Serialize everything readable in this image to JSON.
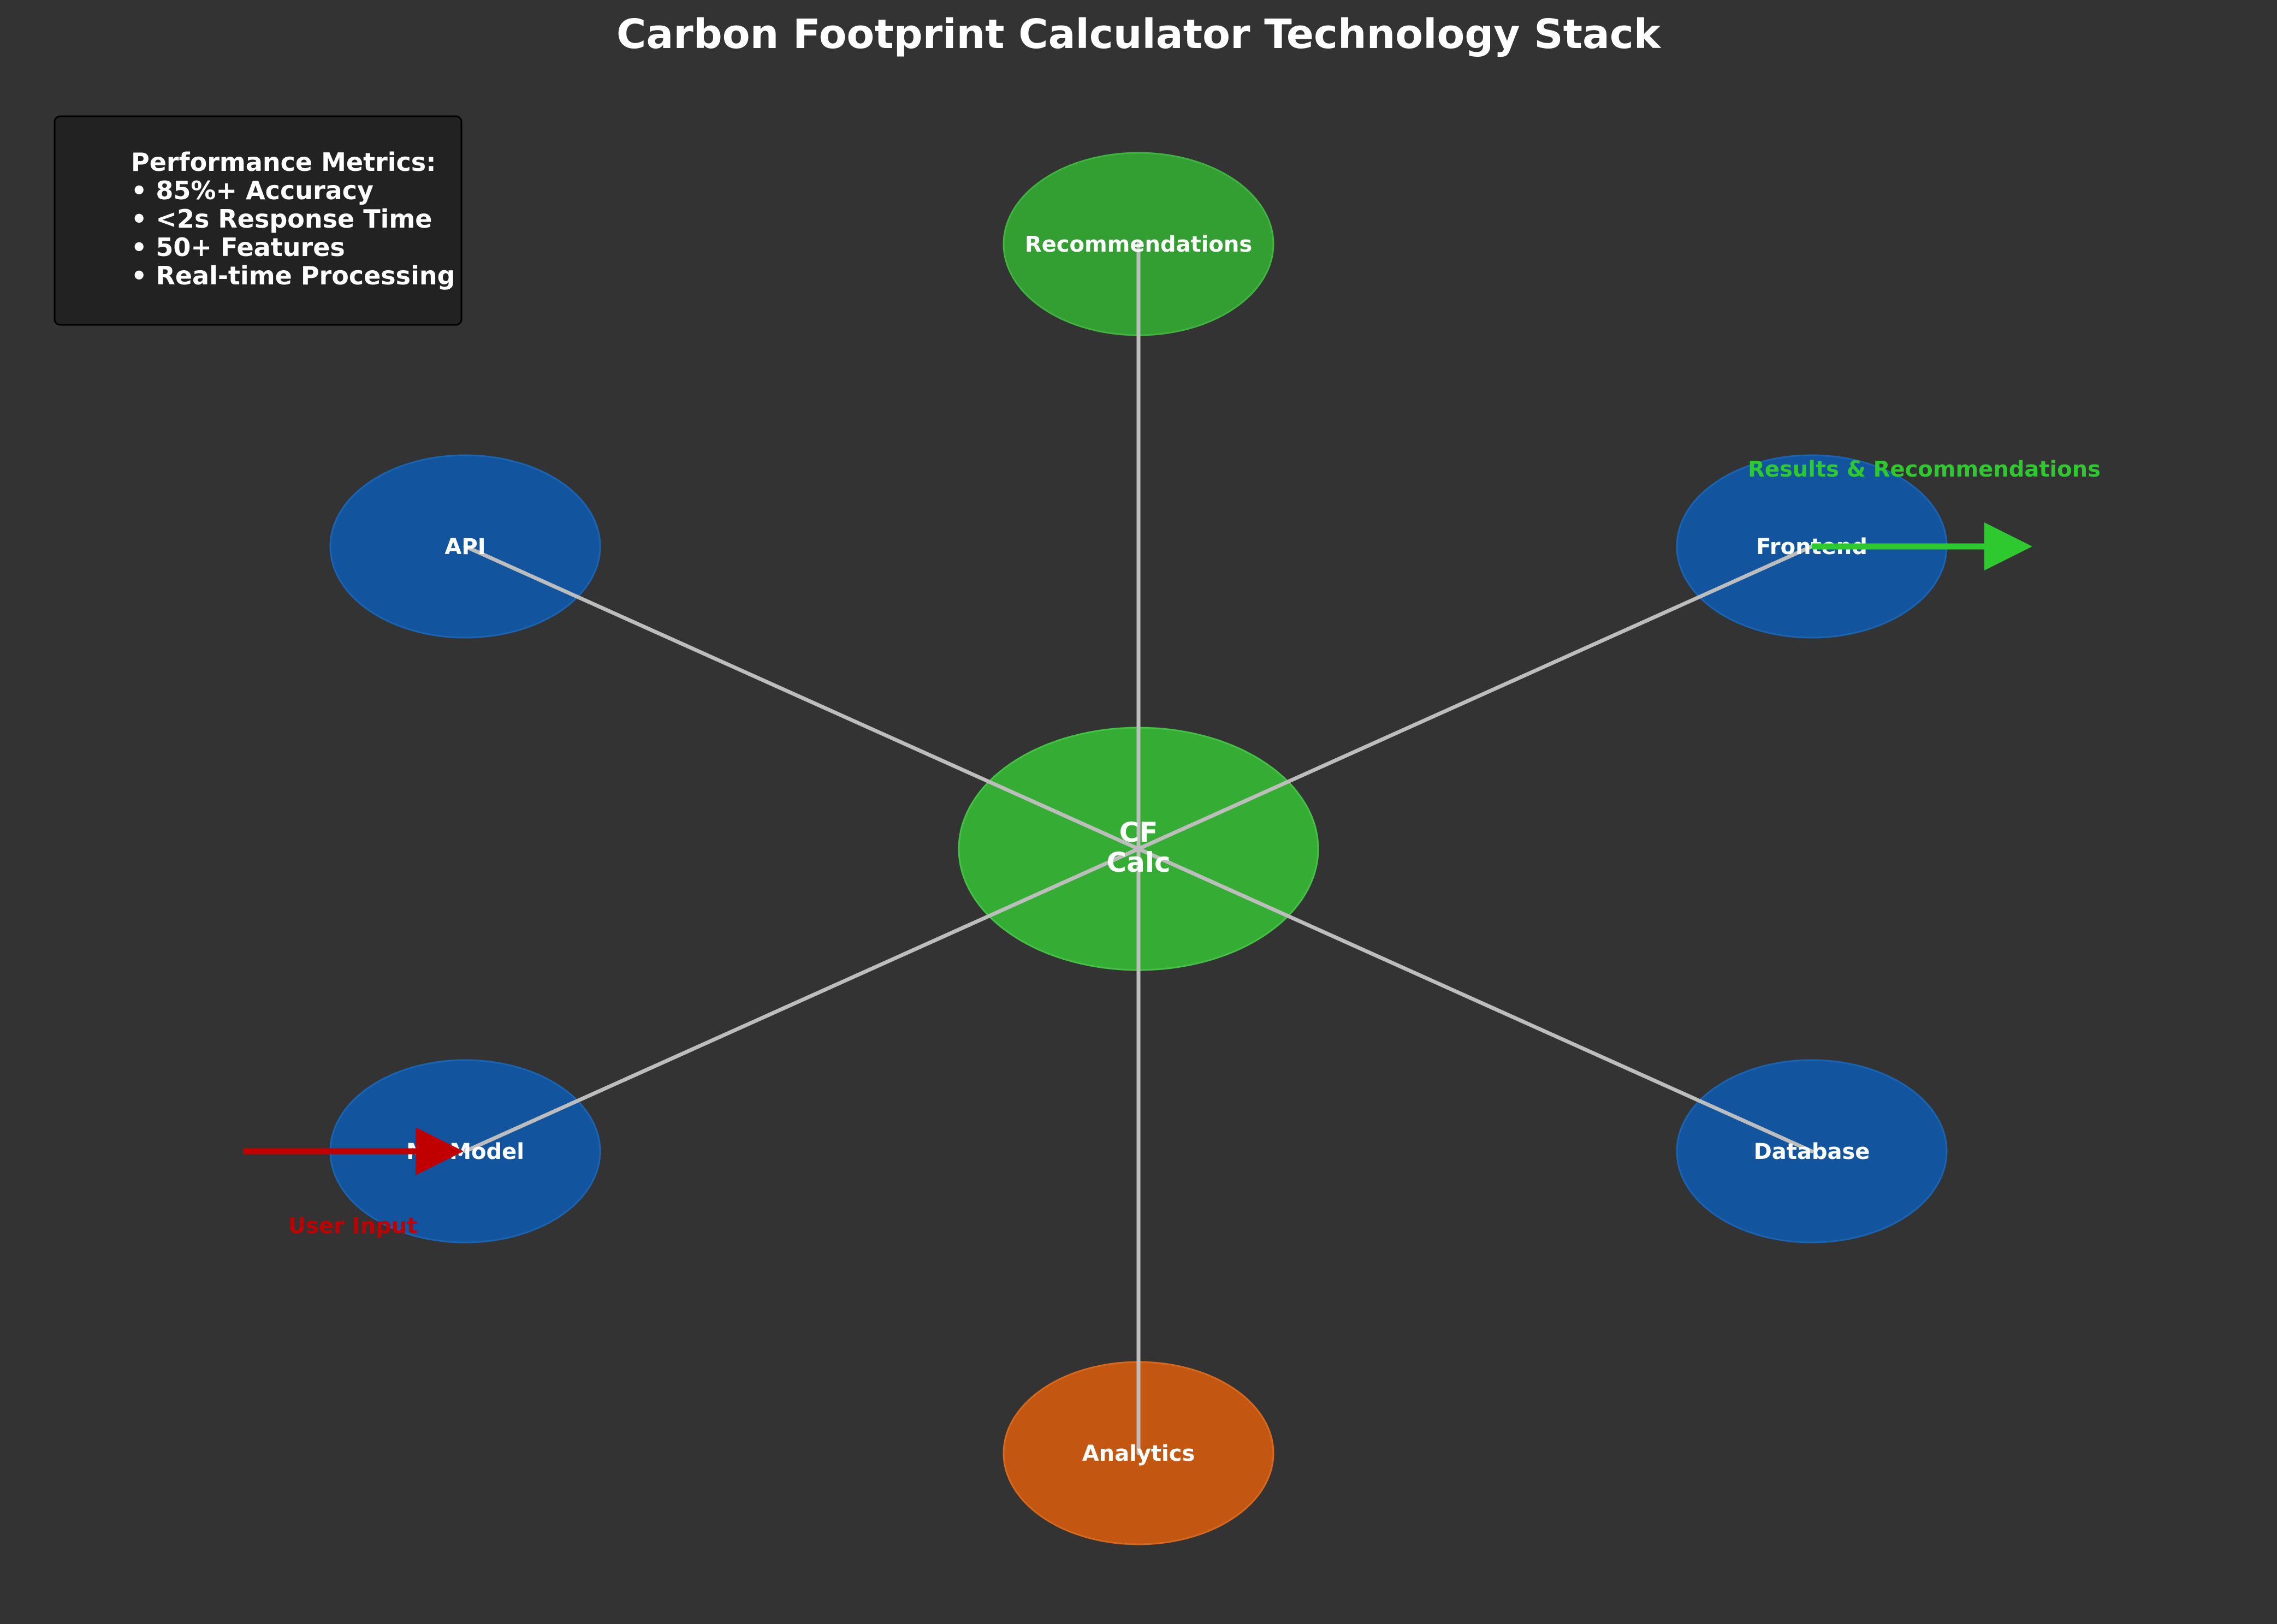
{
  "title": "Carbon Footprint Calculator Technology Stack",
  "metrics": {
    "heading": "Performance Metrics:",
    "items": [
      "• 85%+ Accuracy",
      "• <2s Response Time",
      "• 50+ Features",
      "• Real-time Processing"
    ]
  },
  "center": {
    "line1": "CF",
    "line2": "Calc"
  },
  "nodes": {
    "recommendations": "Recommendations",
    "api": "API",
    "frontend": "Frontend",
    "ml_model": "ML Model",
    "database": "Database",
    "analytics": "Analytics"
  },
  "flows": {
    "output_label": "Results & Recommendations",
    "input_label": "User Input"
  },
  "colors": {
    "background": "#333333",
    "center": "#35ad35",
    "recommendations": "#339f33",
    "component": "#12549d",
    "analytics": "#c35711",
    "connector": "#bdbdbd",
    "output_arrow": "#2ec92e",
    "input_arrow": "#c00000"
  }
}
